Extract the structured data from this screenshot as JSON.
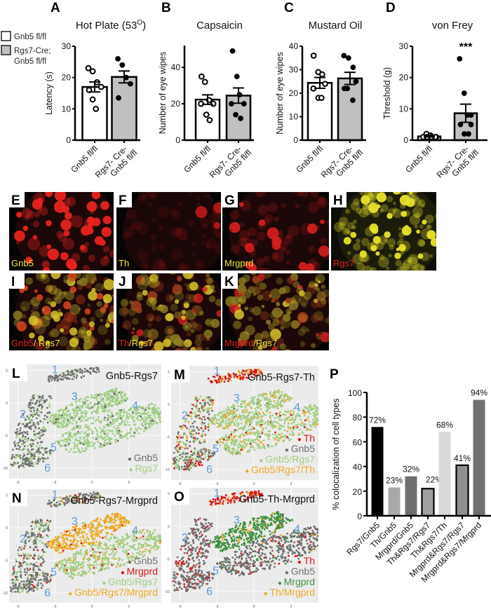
{
  "legend": {
    "items": [
      {
        "lines": [
          "Gnb5 fl/fl"
        ],
        "fill": "#ffffff"
      },
      {
        "lines": [
          "Rgs7-Cre;",
          "Gnb5 fl/fl"
        ],
        "fill": "#c0c0c0"
      }
    ]
  },
  "chart_data": [
    {
      "panel": "A",
      "type": "bar",
      "title": "Hot Plate (53",
      "title_sup": "O",
      "title_end": ")",
      "ylabel": "Latency (s)",
      "ylim": [
        0,
        30
      ],
      "yticks": [
        0,
        10,
        20,
        30
      ],
      "categories": [
        [
          "Gnb5 fl/fl"
        ],
        [
          "Rgs7- Cre-",
          "Gnb5 fl/fl"
        ]
      ],
      "fills": [
        "#ffffff",
        "#c0c0c0"
      ],
      "means": [
        17.0,
        20.2
      ],
      "sem": [
        1.6,
        1.9
      ],
      "points": [
        [
          23,
          22,
          18.5,
          17,
          16,
          13,
          10
        ],
        [
          26,
          24,
          20,
          18,
          13.5
        ]
      ]
    },
    {
      "panel": "B",
      "type": "bar",
      "title": "Capsaicin",
      "ylabel": "Number of eye wipes",
      "ylim": [
        0,
        52
      ],
      "yticks": [
        0,
        20,
        40
      ],
      "categories": [
        [
          "Gnb5 fl/fl"
        ],
        [
          "Rgs7- Cre-",
          "Gnb5 fl/fl"
        ]
      ],
      "fills": [
        "#ffffff",
        "#c0c0c0"
      ],
      "means": [
        22.3,
        24.5
      ],
      "sem": [
        2.6,
        4.2
      ],
      "points": [
        [
          35,
          32,
          22,
          20,
          20,
          14,
          11
        ],
        [
          49,
          35,
          25,
          20,
          20,
          14,
          12
        ]
      ]
    },
    {
      "panel": "C",
      "type": "bar",
      "title": "Mustard Oil",
      "ylabel": "Number of eye wipes",
      "ylim": [
        0,
        40
      ],
      "yticks": [
        0,
        10,
        20,
        30,
        40
      ],
      "categories": [
        [
          "Gnb5 fl/fl"
        ],
        [
          "Rgs7- Cre-",
          "Gnb5 fl/fl"
        ]
      ],
      "fills": [
        "#ffffff",
        "#c0c0c0"
      ],
      "means": [
        24.4,
        26.3
      ],
      "sem": [
        2.3,
        2.6
      ],
      "points": [
        [
          36,
          29,
          28,
          24,
          22,
          18,
          18
        ],
        [
          36,
          35,
          31,
          25,
          22,
          22,
          17
        ]
      ]
    },
    {
      "panel": "D",
      "type": "bar",
      "title": "von Frey",
      "ylabel": "Threshold (g)",
      "ylim": [
        0,
        30
      ],
      "yticks": [
        0,
        10,
        20,
        30
      ],
      "categories": [
        [
          "Gnb5 fl/fl"
        ],
        [
          "Rgs7- Cre-",
          "Gnb5 fl/fl"
        ]
      ],
      "fills": [
        "#ffffff",
        "#c0c0c0"
      ],
      "means": [
        1.2,
        8.6
      ],
      "sem": [
        0.2,
        2.9
      ],
      "points": [
        [
          1,
          2,
          1.5,
          1,
          1,
          1,
          1,
          1
        ],
        [
          26,
          15,
          8,
          8,
          5,
          2,
          2,
          5
        ]
      ],
      "annotation": "***"
    },
    {
      "panel": "P",
      "type": "bar",
      "ylabel": "% colocalization of cell types",
      "ylim": [
        0,
        100
      ],
      "yticks": [
        0,
        20,
        40,
        60,
        80,
        100
      ],
      "categories": [
        "Rgs7/Gnb5",
        "Th/Gnb5",
        "Mrgprd/Gnb5",
        "Th&Rgs7/Rgs7",
        "Th&Rgs7/Th",
        "Mrgprd&Rgs7/Rgs7",
        "Mrgprd&Rgs7/Mrgprd"
      ],
      "values": [
        72,
        23,
        32,
        22,
        68,
        41,
        94
      ],
      "value_labels": [
        "72%",
        "23%",
        "32%",
        "22%",
        "68%",
        "41%",
        "94%"
      ],
      "fills": [
        "#000000",
        "#a9a9a9",
        "#6f6f6f",
        "#a0a0a0",
        "#d9d9d9",
        "#8f8f8f",
        "#707070"
      ],
      "outlined": [
        false,
        false,
        false,
        true,
        false,
        true,
        false
      ]
    },
    {
      "panel": "L",
      "type": "scatter",
      "title": "Gnb5-Rgs7",
      "xticks": [
        "-6",
        "-3",
        "0",
        "3"
      ],
      "yticks": [
        "5",
        "0",
        "-5",
        "-10"
      ],
      "clusters": [
        "1",
        "2",
        "3",
        "4",
        "5",
        "6"
      ],
      "legend": [
        {
          "label": "Gnb5",
          "color": "#6e6e6e"
        },
        {
          "label": "Rgs7",
          "color": "#9fcf82"
        }
      ]
    },
    {
      "panel": "M",
      "type": "scatter",
      "title": "Gnb5-Rgs7-Th",
      "xticks": [
        "-6",
        "-3",
        "0",
        "3"
      ],
      "yticks": [
        "5",
        "0",
        "-5",
        "-10"
      ],
      "clusters": [
        "1",
        "2",
        "3",
        "4",
        "5",
        "6"
      ],
      "legend": [
        {
          "label": "Th",
          "color": "#d7191c"
        },
        {
          "label": "Gnb5",
          "color": "#6e6e6e"
        },
        {
          "label": "Gnb5/Rgs7",
          "color": "#9fcf82"
        },
        {
          "label": "Gnb5/Rgs7/Th",
          "color": "#f0a823"
        }
      ]
    },
    {
      "panel": "N",
      "type": "scatter",
      "title": "Gnb5-Rgs7-Mrgprd",
      "xticks": [
        "-6",
        "-3",
        "0",
        "3"
      ],
      "yticks": [
        "5",
        "0",
        "-5",
        "-10"
      ],
      "clusters": [
        "1",
        "2",
        "3",
        "4",
        "5",
        "6"
      ],
      "legend": [
        {
          "label": "Gnb5",
          "color": "#6e6e6e"
        },
        {
          "label": "Mrgprd",
          "color": "#d7191c"
        },
        {
          "label": "Gnb5/Rgs7",
          "color": "#9fcf82"
        },
        {
          "label": "Gnb5/Rgs7/Mrgprd",
          "color": "#f0a823"
        }
      ]
    },
    {
      "panel": "O",
      "type": "scatter",
      "title": "Gnb5-Th-Mrgprd",
      "xticks": [
        "-6",
        "-3",
        "0",
        "3"
      ],
      "yticks": [
        "5",
        "0",
        "-5",
        "-10"
      ],
      "clusters": [
        "1",
        "2",
        "3",
        "4",
        "5",
        "6"
      ],
      "legend": [
        {
          "label": "Th",
          "color": "#d7191c"
        },
        {
          "label": "Gnb5",
          "color": "#6e6e6e"
        },
        {
          "label": "Mrgprd",
          "color": "#3d9140"
        },
        {
          "label": "Th/Mrgprd",
          "color": "#f0a823"
        }
      ]
    }
  ],
  "micrographs": [
    {
      "panel": "E",
      "label": [
        {
          "text": "Gnb5",
          "color": "#f5e43a"
        }
      ]
    },
    {
      "panel": "F",
      "label": [
        {
          "text": "Th",
          "color": "#f5e43a"
        }
      ]
    },
    {
      "panel": "G",
      "label": [
        {
          "text": "Mrgprd",
          "color": "#f5e43a"
        }
      ]
    },
    {
      "panel": "H",
      "label": [
        {
          "text": "Rgs7",
          "color": "#e0201c"
        }
      ]
    },
    {
      "panel": "I",
      "label": [
        {
          "text": "Gnb5",
          "color": "#e0201c"
        },
        {
          "text": "/ Rgs7",
          "color": "#f5e43a"
        }
      ]
    },
    {
      "panel": "J",
      "label": [
        {
          "text": "Th",
          "color": "#e0201c"
        },
        {
          "text": "/Rgs7",
          "color": "#f5e43a"
        }
      ]
    },
    {
      "panel": "K",
      "label": [
        {
          "text": "Mrgprd",
          "color": "#e0201c"
        },
        {
          "text": "/Rgs7",
          "color": "#f5e43a"
        }
      ]
    }
  ]
}
